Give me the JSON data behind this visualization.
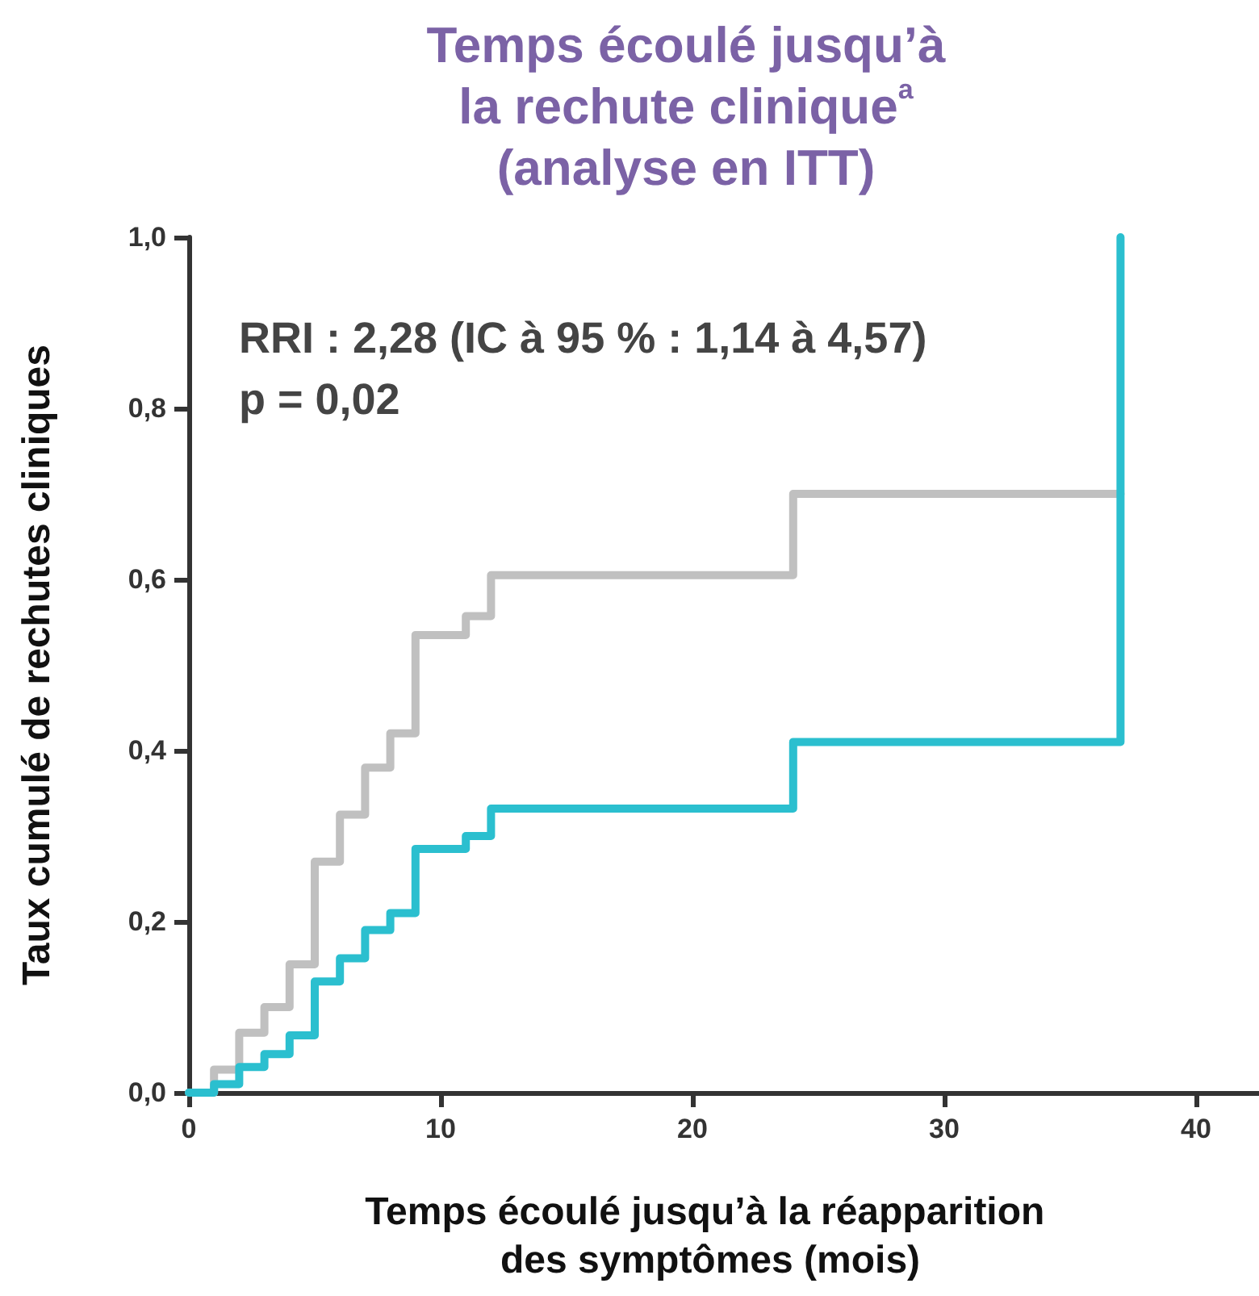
{
  "chart_data": {
    "type": "step",
    "title": "Temps écoulé jusqu’à\nla rechute clinique$^{a}$\n(analyse en ITT)",
    "xlabel": "Temps écoulé jusqu’à la réapparition des symptômes (mois)",
    "ylabel": "Taux cumulé de rechutes cliniques",
    "annotations": [
      "RRI : 2,28 (IC à 95 % : 1,14 à 4,57)",
      "p = 0,02"
    ],
    "series": [
      {
        "color": "#c0c0c0",
        "x": [
          0,
          1,
          2,
          3,
          4,
          5,
          6,
          7,
          8,
          9,
          11,
          12,
          24,
          37
        ],
        "values": [
          0,
          0.027,
          0.07,
          0.1,
          0.15,
          0.27,
          0.325,
          0.38,
          0.42,
          0.535,
          0.557,
          0.605,
          0.7,
          0.7
        ]
      },
      {
        "color": "#2bbfcf",
        "x": [
          0,
          1,
          2,
          3,
          4,
          5,
          6,
          7,
          8,
          9,
          11,
          12,
          24,
          37
        ],
        "values": [
          0,
          0.01,
          0.03,
          0.045,
          0.067,
          0.13,
          0.157,
          0.19,
          0.21,
          0.285,
          0.3,
          0.332,
          0.41,
          1.0
        ]
      }
    ],
    "xlim": [
      0,
      42.5
    ],
    "xticks": [
      0,
      10,
      20,
      30,
      40
    ],
    "ylim": [
      0,
      1
    ],
    "yticks": [
      {
        "value": 0,
        "label": "0,0"
      },
      {
        "value": 0.2,
        "label": "0,2"
      },
      {
        "value": 0.4,
        "label": "0,4"
      },
      {
        "value": 0.6,
        "label": "0,6"
      },
      {
        "value": 0.8,
        "label": "0,8"
      },
      {
        "value": 1,
        "label": "1,0"
      }
    ],
    "grid": false,
    "marker": "none",
    "line_style": "solid"
  }
}
